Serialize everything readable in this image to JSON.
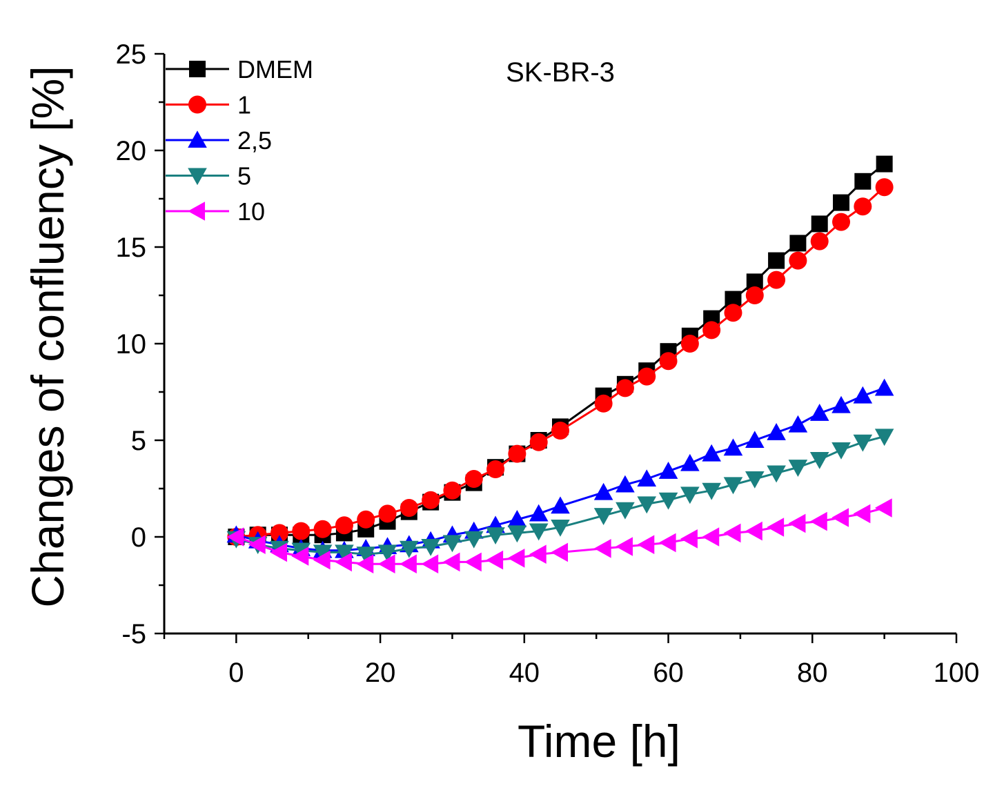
{
  "chart_data": {
    "type": "line",
    "title": "",
    "annotation": "SK-BR-3",
    "xlabel": "Time [h]",
    "ylabel": "Changes of confluency [%]",
    "xlim": [
      -10,
      100
    ],
    "ylim": [
      -5,
      25
    ],
    "xticks": [
      0,
      20,
      40,
      60,
      80,
      100
    ],
    "yticks": [
      -5,
      0,
      5,
      10,
      15,
      20,
      25
    ],
    "x_tick_labels": [
      "0",
      "20",
      "40",
      "60",
      "80",
      "100"
    ],
    "y_tick_labels": [
      "-5",
      "0",
      "5",
      "10",
      "15",
      "20",
      "25"
    ],
    "legend_position": "top-left",
    "x": [
      0,
      3,
      6,
      9,
      12,
      15,
      18,
      21,
      24,
      27,
      30,
      33,
      36,
      39,
      42,
      45,
      51,
      54,
      57,
      60,
      63,
      66,
      69,
      72,
      75,
      78,
      81,
      84,
      87,
      90
    ],
    "series": [
      {
        "name": "DMEM",
        "color": "#000000",
        "marker": "square",
        "values": [
          0,
          0.1,
          0.1,
          0.1,
          0.1,
          0.2,
          0.4,
          0.8,
          1.3,
          1.8,
          2.3,
          2.8,
          3.6,
          4.3,
          5.0,
          5.7,
          7.3,
          7.9,
          8.6,
          9.6,
          10.4,
          11.3,
          12.3,
          13.2,
          14.3,
          15.2,
          16.2,
          17.3,
          18.4,
          19.3
        ]
      },
      {
        "name": "1",
        "color": "#ff0000",
        "marker": "circle",
        "values": [
          0,
          0.1,
          0.2,
          0.3,
          0.4,
          0.6,
          0.9,
          1.2,
          1.5,
          1.9,
          2.4,
          3.0,
          3.5,
          4.3,
          4.9,
          5.5,
          6.9,
          7.7,
          8.3,
          9.1,
          10.0,
          10.7,
          11.6,
          12.5,
          13.3,
          14.3,
          15.3,
          16.3,
          17.1,
          18.1
        ]
      },
      {
        "name": "2,5",
        "color": "#0000ff",
        "marker": "triangle-up",
        "values": [
          0.1,
          -0.2,
          -0.4,
          -0.6,
          -0.7,
          -0.7,
          -0.6,
          -0.5,
          -0.4,
          -0.2,
          0.1,
          0.3,
          0.6,
          0.9,
          1.2,
          1.6,
          2.3,
          2.7,
          3.0,
          3.4,
          3.8,
          4.3,
          4.6,
          5.0,
          5.4,
          5.8,
          6.4,
          6.8,
          7.3,
          7.7
        ]
      },
      {
        "name": "5",
        "color": "#1a8080",
        "marker": "triangle-down",
        "values": [
          -0.1,
          -0.4,
          -0.6,
          -0.7,
          -0.8,
          -0.8,
          -0.9,
          -0.8,
          -0.6,
          -0.5,
          -0.3,
          -0.1,
          0.1,
          0.2,
          0.3,
          0.5,
          1.1,
          1.4,
          1.7,
          1.9,
          2.2,
          2.4,
          2.7,
          3.0,
          3.3,
          3.6,
          4.0,
          4.5,
          4.9,
          5.2
        ]
      },
      {
        "name": "10",
        "color": "#ff00ff",
        "marker": "triangle-left",
        "values": [
          0,
          -0.4,
          -0.8,
          -1.0,
          -1.2,
          -1.3,
          -1.4,
          -1.4,
          -1.4,
          -1.4,
          -1.3,
          -1.3,
          -1.2,
          -1.1,
          -0.9,
          -0.8,
          -0.6,
          -0.5,
          -0.4,
          -0.3,
          -0.1,
          0,
          0.2,
          0.3,
          0.5,
          0.7,
          0.8,
          1.0,
          1.2,
          1.5
        ]
      }
    ]
  }
}
